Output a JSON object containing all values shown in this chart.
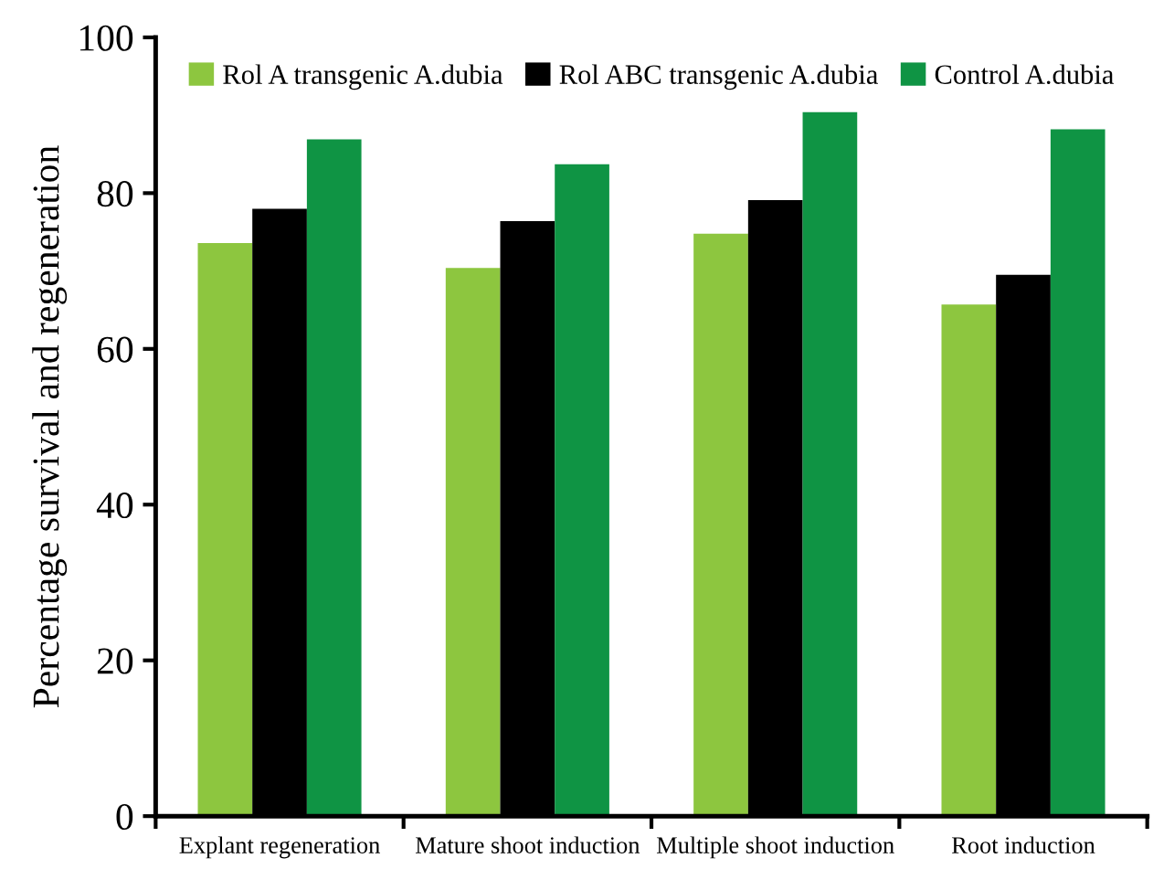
{
  "chart_data": {
    "type": "bar",
    "ylabel": "Percentage survival and regeneration",
    "categories": [
      "Explant regeneration",
      "Mature shoot induction",
      "Multiple shoot induction",
      "Root induction"
    ],
    "series": [
      {
        "name": "Rol A transgenic A.dubia",
        "color": "#8dc63f",
        "values": [
          73.6,
          70.4,
          74.8,
          65.7
        ]
      },
      {
        "name": "Rol ABC transgenic A.dubia",
        "color": "#000000",
        "values": [
          78.0,
          76.4,
          79.1,
          69.5
        ]
      },
      {
        "name": "Control A.dubia",
        "color": "#0f9444",
        "values": [
          86.9,
          83.7,
          90.4,
          88.2
        ]
      }
    ],
    "ylim": [
      0,
      100
    ],
    "yticks": [
      0,
      20,
      40,
      60,
      80,
      100
    ],
    "legend": "top",
    "grid": false
  }
}
